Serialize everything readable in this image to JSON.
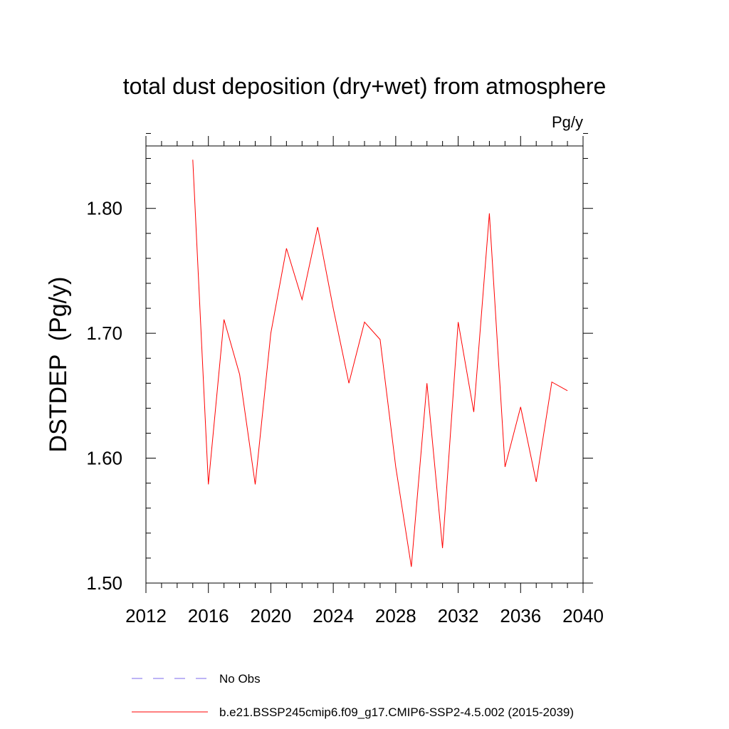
{
  "chart_data": {
    "type": "line",
    "title": "total dust deposition (dry+wet) from atmosphere",
    "units_label": "Pg/y",
    "ylabel": "DSTDEP  (Pg/y)",
    "xlabel": "",
    "xlim": [
      2012,
      2040
    ],
    "ylim": [
      1.5,
      1.85
    ],
    "x_ticks": [
      2012,
      2016,
      2020,
      2024,
      2028,
      2032,
      2036,
      2040
    ],
    "x_tick_labels": [
      "2012",
      "2016",
      "2020",
      "2024",
      "2028",
      "2032",
      "2036",
      "2040"
    ],
    "y_ticks": [
      1.5,
      1.6,
      1.7,
      1.8
    ],
    "y_tick_labels": [
      "1.50",
      "1.60",
      "1.70",
      "1.80"
    ],
    "x_minor_step": 1,
    "y_minor_step": 0.02,
    "series": [
      {
        "name": "b.e21.BSSP245cmip6.f09_g17.CMIP6-SSP2-4.5.002 (2015-2039)",
        "color": "#ff0000",
        "x": [
          2015,
          2016,
          2017,
          2018,
          2019,
          2020,
          2021,
          2022,
          2023,
          2024,
          2025,
          2026,
          2027,
          2028,
          2029,
          2030,
          2031,
          2032,
          2033,
          2034,
          2035,
          2036,
          2037,
          2038,
          2039
        ],
        "values": [
          1.839,
          1.579,
          1.711,
          1.667,
          1.579,
          1.7,
          1.768,
          1.727,
          1.785,
          1.72,
          1.66,
          1.709,
          1.695,
          1.593,
          1.513,
          1.66,
          1.528,
          1.709,
          1.637,
          1.796,
          1.593,
          1.641,
          1.581,
          1.661,
          1.654
        ]
      }
    ],
    "legend": [
      {
        "label": "No Obs",
        "color": "#7b68ee",
        "style": "dashed"
      },
      {
        "label": "b.e21.BSSP245cmip6.f09_g17.CMIP6-SSP2-4.5.002 (2015-2039)",
        "color": "#ff0000",
        "style": "solid"
      }
    ],
    "legend_position": "bottom"
  }
}
